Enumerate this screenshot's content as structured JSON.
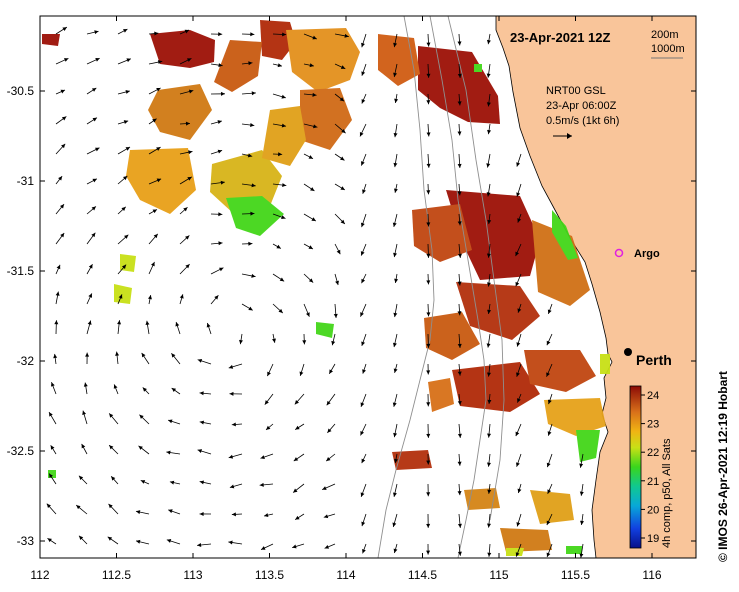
{
  "map": {
    "timestamp": "23-Apr-2021 12Z",
    "contours": [
      "200m",
      "1000m"
    ],
    "current_legend": {
      "line1": "NRT00 GSL",
      "line2": "23-Apr 06:00Z",
      "line3": "0.5m/s (1kt 6h)"
    },
    "places": {
      "argo": "Argo",
      "perth": "Perth"
    },
    "colorbar": {
      "ticks": [
        "24",
        "23",
        "22",
        "21",
        "20",
        "19"
      ],
      "label": "4h comp, p50, All Sats"
    },
    "credit": "© IMOS 26-Apr-2021 12:19 Hobart",
    "lon_ticks": [
      "112",
      "112.5",
      "113",
      "113.5",
      "114",
      "114.5",
      "115",
      "115.5",
      "116"
    ],
    "lat_ticks": [
      "-30.5",
      "-31",
      "-31.5",
      "-32",
      "-32.5",
      "-33"
    ],
    "colors": {
      "land": "#f9c59a",
      "sst_hot": "#9c1006",
      "sst_cool": "#43d619"
    }
  }
}
